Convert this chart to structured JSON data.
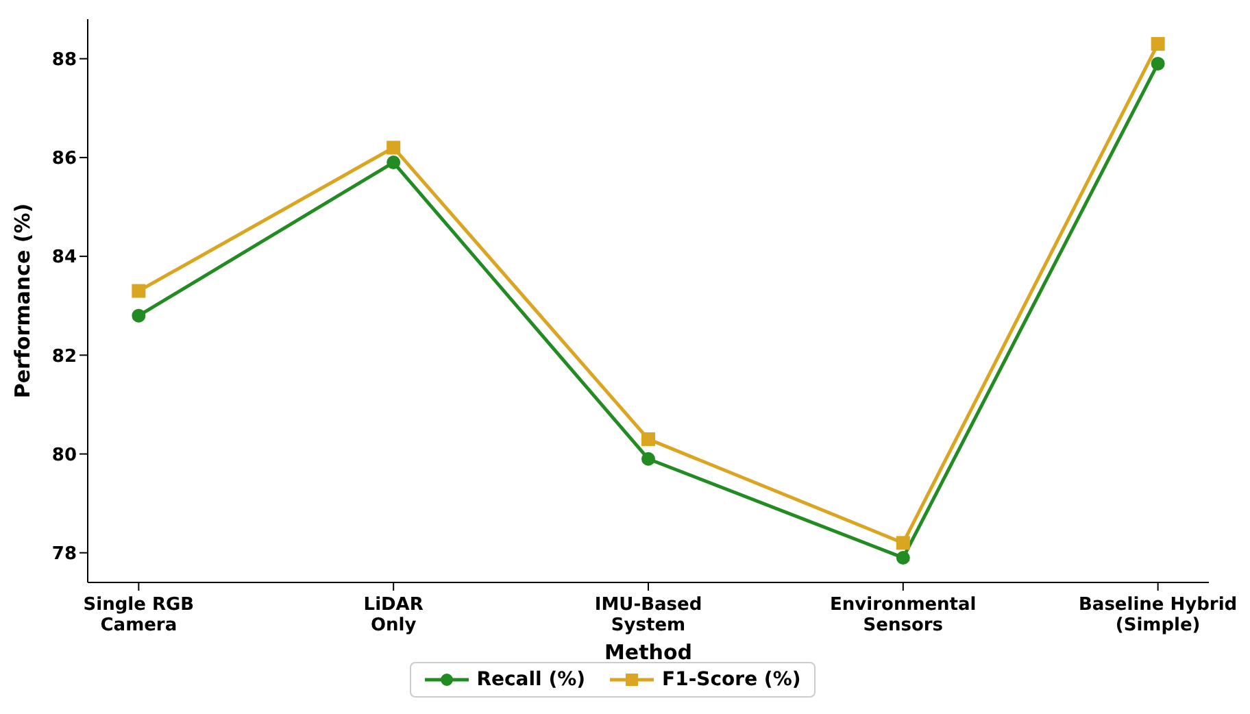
{
  "chart_data": {
    "type": "line",
    "xlabel": "Method",
    "ylabel": "Performance (%)",
    "categories": [
      "Single RGB\nCamera",
      "LiDAR\nOnly",
      "IMU-Based\nSystem",
      "Environmental\nSensors",
      "Baseline Hybrid\n(Simple)"
    ],
    "series": [
      {
        "name": "Recall (%)",
        "color": "#228b22",
        "marker": "circle",
        "values": [
          82.8,
          85.9,
          79.9,
          77.9,
          87.9
        ]
      },
      {
        "name": "F1-Score (%)",
        "color": "#daa520",
        "marker": "square",
        "values": [
          83.3,
          86.2,
          80.3,
          78.2,
          88.3
        ]
      }
    ],
    "ylim": [
      77.4,
      88.8
    ],
    "yticks": [
      78,
      80,
      82,
      84,
      86,
      88
    ],
    "grid": false,
    "legend": "bottom",
    "line_style": "solid"
  }
}
